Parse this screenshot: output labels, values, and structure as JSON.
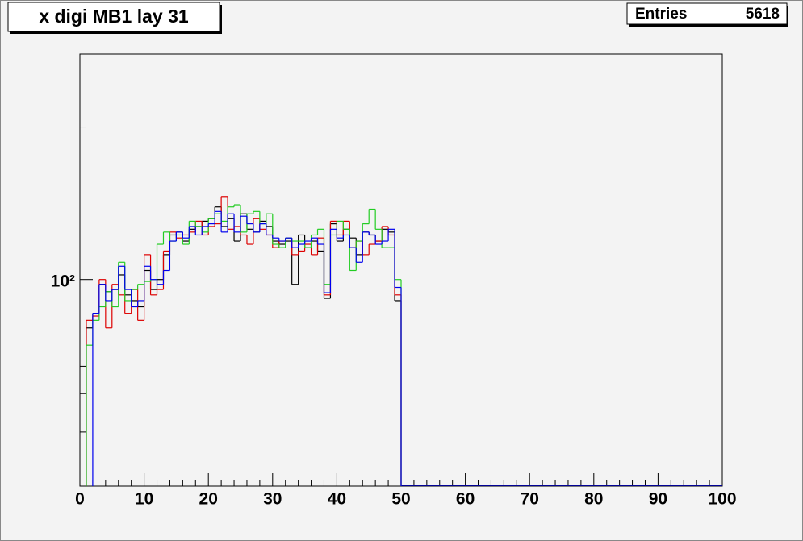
{
  "chart_data": {
    "type": "histogram",
    "title": "x digi MB1 lay 31",
    "stats": {
      "label": "Entries",
      "value": 5618
    },
    "bins": [
      1,
      2,
      3,
      4,
      5,
      6,
      7,
      8,
      9,
      10,
      11,
      12,
      13,
      14,
      15,
      16,
      17,
      18,
      19,
      20,
      21,
      22,
      23,
      24,
      25,
      26,
      27,
      28,
      29,
      30,
      31,
      32,
      33,
      34,
      35,
      36,
      37,
      38,
      39,
      40,
      41,
      42,
      43,
      44,
      45,
      46,
      47,
      48,
      49,
      50
    ],
    "series": [
      {
        "color": "#000000",
        "values": [
          60,
          70,
          95,
          88,
          90,
          105,
          85,
          80,
          75,
          110,
          90,
          100,
          130,
          160,
          165,
          150,
          170,
          175,
          185,
          190,
          215,
          175,
          190,
          150,
          200,
          170,
          165,
          185,
          175,
          150,
          145,
          150,
          95,
          160,
          140,
          150,
          135,
          82,
          180,
          150,
          170,
          155,
          130,
          165,
          160,
          150,
          170,
          165,
          80
        ]
      },
      {
        "color": "#dd0000",
        "values": [
          65,
          68,
          100,
          60,
          95,
          85,
          70,
          90,
          65,
          130,
          85,
          90,
          135,
          165,
          155,
          160,
          165,
          185,
          160,
          175,
          180,
          240,
          170,
          175,
          160,
          145,
          190,
          170,
          160,
          140,
          150,
          155,
          130,
          135,
          145,
          130,
          155,
          85,
          185,
          160,
          185,
          140,
          150,
          130,
          145,
          150,
          175,
          160,
          85
        ]
      },
      {
        "color": "#22cc22",
        "values": [
          50,
          65,
          75,
          88,
          75,
          120,
          80,
          90,
          95,
          98,
          100,
          145,
          165,
          150,
          160,
          145,
          185,
          175,
          165,
          190,
          200,
          185,
          215,
          220,
          165,
          200,
          205,
          180,
          200,
          145,
          140,
          155,
          150,
          150,
          140,
          160,
          170,
          95,
          160,
          185,
          170,
          110,
          150,
          180,
          210,
          170,
          140,
          140,
          100
        ]
      },
      {
        "color": "#0000ee",
        "values": [
          null,
          70,
          95,
          80,
          90,
          115,
          90,
          75,
          80,
          115,
          100,
          95,
          110,
          150,
          165,
          155,
          175,
          160,
          175,
          180,
          205,
          165,
          200,
          165,
          195,
          180,
          165,
          180,
          160,
          155,
          150,
          155,
          140,
          145,
          150,
          155,
          145,
          87,
          170,
          155,
          160,
          140,
          120,
          165,
          160,
          145,
          150,
          170,
          92
        ]
      }
    ],
    "xlim": [
      0,
      100
    ],
    "xticks": [
      0,
      10,
      20,
      30,
      40,
      50,
      60,
      70,
      80,
      90,
      100
    ],
    "ylim": [
      11.3,
      1080
    ],
    "log_y": true,
    "yticks": [
      {
        "value": 100,
        "label": "10²"
      }
    ],
    "y_minor_ticks": [
      20,
      30,
      40,
      500
    ]
  }
}
